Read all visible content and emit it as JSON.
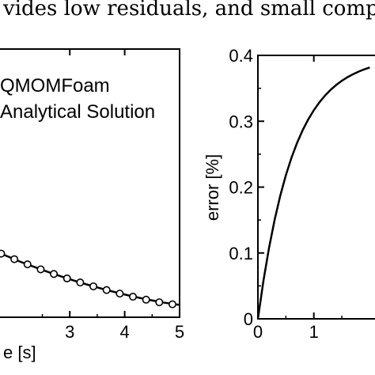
{
  "caption": "vides low residuals, and small computation",
  "chart_data": [
    {
      "type": "line",
      "title": "",
      "xlabel": "e [s]",
      "ylabel": "",
      "xlim": [
        1.7,
        5
      ],
      "ylim": [
        0.95,
        2.4
      ],
      "x_ticks": [
        "3",
        "4",
        "5"
      ],
      "legend_entries": [
        "QMOMFoam",
        "Analytical Solution"
      ],
      "legend_placement": "top-left",
      "grid": false,
      "series": [
        {
          "name": "Analytical Solution",
          "style": "solid line",
          "color": "#000000",
          "x": [
            1.7,
            1.9,
            2.1,
            2.3,
            2.5,
            2.7,
            2.9,
            3.1,
            3.3,
            3.5,
            3.7,
            3.9,
            4.1,
            4.3,
            4.5,
            4.7,
            4.85,
            5.0
          ],
          "y": [
            1.3,
            1.275,
            1.25,
            1.228,
            1.206,
            1.185,
            1.165,
            1.146,
            1.128,
            1.111,
            1.095,
            1.08,
            1.066,
            1.053,
            1.041,
            1.03,
            1.023,
            1.017
          ]
        },
        {
          "name": "QMOMFoam",
          "style": "open circle markers",
          "color": "#000000",
          "x": [
            1.75,
            1.99,
            2.23,
            2.47,
            2.71,
            2.95,
            3.19,
            3.43,
            3.67,
            3.91,
            4.15,
            4.39,
            4.63,
            4.87
          ],
          "y": [
            1.294,
            1.264,
            1.236,
            1.209,
            1.184,
            1.16,
            1.138,
            1.117,
            1.097,
            1.078,
            1.061,
            1.045,
            1.031,
            1.02
          ]
        }
      ]
    },
    {
      "type": "line",
      "title": "",
      "xlabel": "",
      "ylabel": "error [%]",
      "xlim": [
        0,
        2.15
      ],
      "ylim": [
        0,
        0.4
      ],
      "x_ticks": [
        "0",
        "1"
      ],
      "y_ticks": [
        "0",
        "0.1",
        "0.2",
        "0.3",
        "0.4"
      ],
      "legend_placement": "none",
      "grid": false,
      "series": [
        {
          "style": "solid line",
          "color": "#000000",
          "x": [
            0,
            0.1,
            0.2,
            0.3,
            0.4,
            0.5,
            0.6,
            0.7,
            0.8,
            0.9,
            1.0,
            1.1,
            1.2,
            1.3,
            1.4,
            1.5,
            1.6,
            1.7,
            1.8,
            1.9,
            2.0
          ],
          "y": [
            0,
            0.0584,
            0.1083,
            0.1508,
            0.1871,
            0.2181,
            0.2446,
            0.2671,
            0.2864,
            0.3028,
            0.3168,
            0.3288,
            0.339,
            0.3477,
            0.3551,
            0.3614,
            0.3668,
            0.3714,
            0.3754,
            0.3787,
            0.3816
          ]
        }
      ]
    }
  ]
}
